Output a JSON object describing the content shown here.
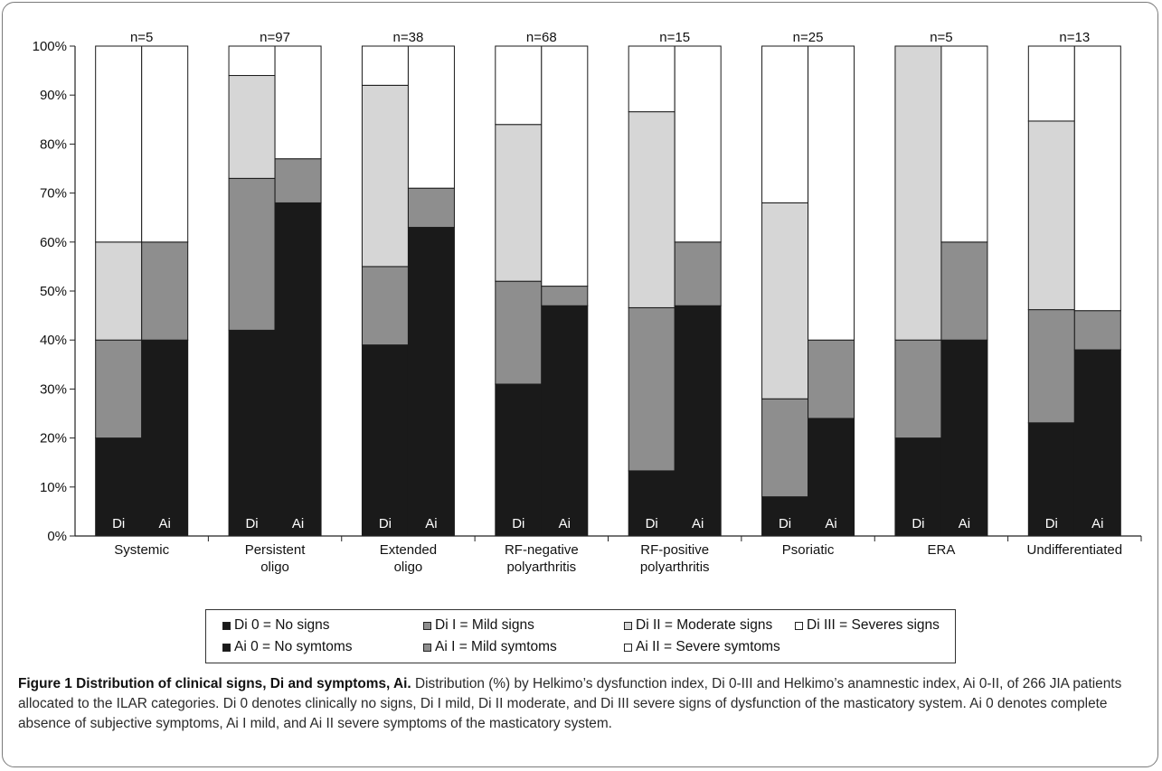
{
  "chart_data": {
    "type": "bar",
    "stacked": true,
    "percent": true,
    "ylim": [
      0,
      100
    ],
    "yticks": [
      "0%",
      "10%",
      "20%",
      "30%",
      "40%",
      "50%",
      "60%",
      "70%",
      "80%",
      "90%",
      "100%"
    ],
    "grid": false,
    "categories": [
      {
        "label": [
          "Systemic"
        ],
        "n": "n=5"
      },
      {
        "label": [
          "Persistent",
          "oligo"
        ],
        "n": "n=97"
      },
      {
        "label": [
          "Extended",
          "oligo"
        ],
        "n": "n=38"
      },
      {
        "label": [
          "RF-negative",
          "polyarthritis"
        ],
        "n": "n=68"
      },
      {
        "label": [
          "RF-positive",
          "polyarthritis"
        ],
        "n": "n=15"
      },
      {
        "label": [
          "Psoriatic"
        ],
        "n": "n=25"
      },
      {
        "label": [
          "ERA"
        ],
        "n": "n=5"
      },
      {
        "label": [
          "Undifferentiated"
        ],
        "n": "n=13"
      }
    ],
    "bar_labels": {
      "di": "Di",
      "ai": "Ai"
    },
    "di_series": [
      {
        "name": "Di 0 = No signs",
        "color": "#1a1a1a",
        "values": [
          20,
          42,
          39,
          31,
          13.3,
          8,
          20,
          23.1
        ]
      },
      {
        "name": "Di I = Mild signs",
        "color": "#8e8e8e",
        "values": [
          20,
          31,
          16,
          21,
          33.3,
          20,
          20,
          23.1
        ]
      },
      {
        "name": "Di II = Moderate signs",
        "color": "#d6d6d6",
        "values": [
          20,
          21,
          37,
          32,
          40,
          40,
          60,
          38.5
        ]
      },
      {
        "name": "Di III = Severes signs",
        "color": "#ffffff",
        "values": [
          40,
          6,
          8,
          16,
          13.4,
          32,
          0,
          15.3
        ]
      }
    ],
    "ai_series": [
      {
        "name": "Ai 0 = No symtoms",
        "color": "#1a1a1a",
        "values": [
          40,
          68,
          63,
          47,
          47,
          24,
          40,
          38
        ]
      },
      {
        "name": "Ai I = Mild symtoms",
        "color": "#8e8e8e",
        "values": [
          20,
          9,
          8,
          4,
          13,
          16,
          20,
          8
        ]
      },
      {
        "name": "Ai II = Severe symtoms",
        "color": "#ffffff",
        "values": [
          40,
          23,
          29,
          49,
          40,
          60,
          40,
          54
        ]
      }
    ]
  },
  "caption": {
    "title": "Figure 1 Distribution of clinical signs, Di and symptoms, Ai.",
    "text": "Distribution (%) by Helkimo’s dysfunction index, Di 0-III and Helkimo’s anamnestic index, Ai 0-II, of 266 JIA patients allocated to the ILAR categories. Di 0 denotes clinically no signs, Di I mild, Di II moderate, and Di III severe signs of dysfunction of the masticatory system. Ai 0 denotes complete absence of subjective symptoms, Ai I mild, and Ai II severe symptoms of the masticatory system."
  }
}
